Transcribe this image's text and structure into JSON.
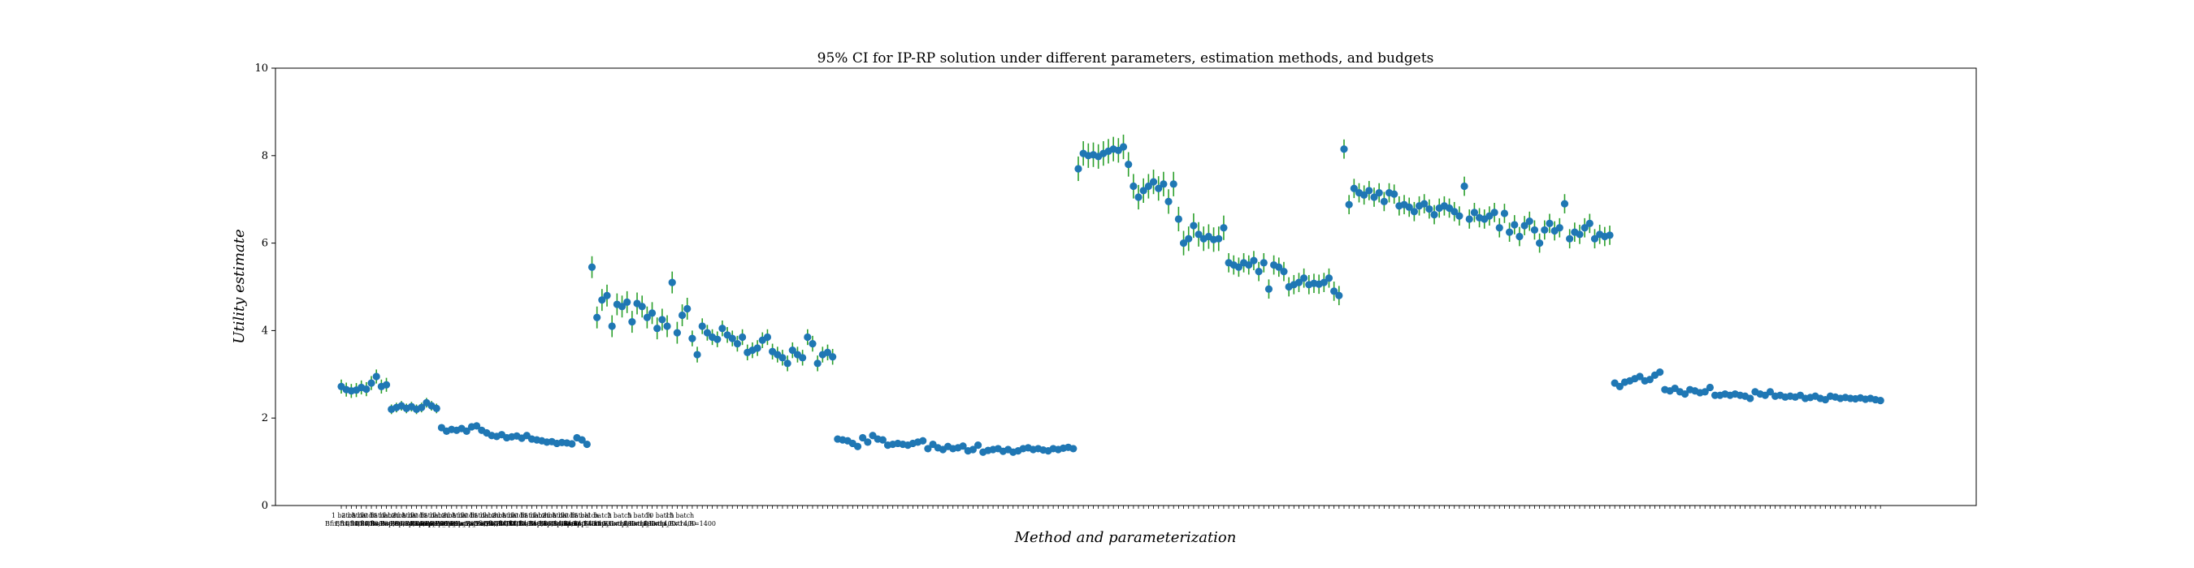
{
  "chart_data": {
    "type": "scatter",
    "title": "95% CI for IP-RP solution under different parameters, estimation methods, and budgets",
    "xlabel": "Method and parameterization",
    "ylabel": "Utility estimate",
    "ylim": [
      0,
      10
    ],
    "yticks": [
      0,
      2,
      4,
      6,
      8,
      10
    ],
    "grid": false,
    "colors": {
      "point": "#1f77b4",
      "errorbar": "#2ca02c"
    },
    "group_labels": [
      {
        "line1": "1 batch",
        "line2": "Bfix,B=700"
      },
      {
        "line1": "2 batch",
        "line2": "Bfix,B=700"
      },
      {
        "line1": "5 batch",
        "line2": "Bfix,B=700"
      },
      {
        "line1": "10 batch",
        "line2": "Bfix,B=700"
      },
      {
        "line1": "15 batch",
        "line2": "Bfix,B=700"
      },
      {
        "line1": "1 batch",
        "line2": "Bsamp,B=700"
      },
      {
        "line1": "2 batch",
        "line2": "Bsamp,B=700"
      },
      {
        "line1": "5 batch",
        "line2": "Bsamp,B=700"
      },
      {
        "line1": "10 batch",
        "line2": "Bsamp,B=700"
      },
      {
        "line1": "15 batch",
        "line2": "Bsamp,B=700"
      },
      {
        "line1": "1 batch",
        "line2": "Bsamp_Extra,B=700"
      },
      {
        "line1": "2 batch",
        "line2": "Bsamp_Extra,B=700"
      },
      {
        "line1": "5 batch",
        "line2": "Bsamp_Extra,B=700"
      },
      {
        "line1": "10 batch",
        "line2": "Bsamp_Extra,B=700"
      },
      {
        "line1": "15 batch",
        "line2": "Bsamp_Extra,B=700"
      },
      {
        "line1": "1 batch",
        "line2": "Bfix,B=1400"
      },
      {
        "line1": "2 batch",
        "line2": "Bfix,B=1400"
      },
      {
        "line1": "5 batch",
        "line2": "Bfix,B=1400"
      },
      {
        "line1": "10 batch",
        "line2": "Bfix,B=1400"
      },
      {
        "line1": "15 batch",
        "line2": "Bfix,B=1400"
      },
      {
        "line1": "1 batch",
        "line2": "Bsamp,B=1400"
      },
      {
        "line1": "2 batch",
        "line2": "Bsamp,B=1400"
      },
      {
        "line1": "5 batch",
        "line2": "Bsamp,B=1400"
      },
      {
        "line1": "10 batch",
        "line2": "Bsamp,B=1400"
      },
      {
        "line1": "15 batch",
        "line2": "Bsamp,B=1400"
      },
      {
        "line1": "1 batch",
        "line2": "Bsamp_Extra,B=1400"
      },
      {
        "line1": "2 batch",
        "line2": "Bsamp_Extra,B=1400"
      },
      {
        "line1": "5 batch",
        "line2": "Bsamp_Extra,B=1400"
      },
      {
        "line1": "10 batch",
        "line2": "Bsamp_Extra,B=1400"
      },
      {
        "line1": "15 batch",
        "line2": "Bsamp_Extra,B=1400"
      }
    ],
    "series": [
      {
        "y": [
          2.72,
          2.65,
          2.62,
          2.64,
          2.7,
          2.66,
          2.8,
          2.95,
          2.72,
          2.76
        ],
        "ci": 0.16
      },
      {
        "y": [
          2.2,
          2.24,
          2.28,
          2.22,
          2.26,
          2.2,
          2.24,
          2.35,
          2.28,
          2.22
        ],
        "ci": 0.11
      },
      {
        "y": [
          1.78,
          1.7,
          1.74,
          1.72,
          1.76,
          1.7,
          1.8,
          1.82,
          1.72,
          1.66
        ],
        "ci": 0.07
      },
      {
        "y": [
          1.6,
          1.58,
          1.62,
          1.55,
          1.57,
          1.59,
          1.54,
          1.6,
          1.52,
          1.5
        ],
        "ci": 0.04
      },
      {
        "y": [
          1.48,
          1.45,
          1.46,
          1.42,
          1.44,
          1.43,
          1.41,
          1.55,
          1.5,
          1.4
        ],
        "ci": 0.03
      },
      {
        "y": [
          5.45,
          4.3,
          4.7,
          4.8,
          4.1,
          4.6,
          4.55,
          4.65,
          4.2,
          4.62,
          4.55,
          4.3,
          4.4,
          4.05,
          4.25,
          4.1,
          5.1,
          3.95,
          4.35,
          4.5
        ],
        "ci": 0.25
      },
      {
        "y": [
          3.82,
          3.45,
          4.1,
          3.95,
          3.85,
          3.8,
          4.05,
          3.9,
          3.82,
          3.7,
          3.85,
          3.5,
          3.55,
          3.6,
          3.78,
          3.85,
          3.52,
          3.45,
          3.38,
          3.25,
          3.55,
          3.45,
          3.38,
          3.85,
          3.7,
          3.25,
          3.45,
          3.5,
          3.4
        ],
        "ci": 0.18
      },
      {
        "y": [
          1.52,
          1.5,
          1.48,
          1.42,
          1.35,
          1.55,
          1.45,
          1.6,
          1.52,
          1.5,
          1.38,
          1.4,
          1.42,
          1.4,
          1.38,
          1.42,
          1.45,
          1.48,
          1.3,
          1.4,
          1.32,
          1.28,
          1.35,
          1.3,
          1.32,
          1.36,
          1.25,
          1.28,
          1.38,
          1.22,
          1.26,
          1.28,
          1.3,
          1.24,
          1.28,
          1.22,
          1.25,
          1.3,
          1.32,
          1.28,
          1.3,
          1.27,
          1.25,
          1.3,
          1.28,
          1.31,
          1.33,
          1.3
        ],
        "ci": 0.04
      },
      {
        "y": [
          7.7,
          8.05,
          8.0,
          8.02,
          7.98,
          8.05,
          8.1,
          8.15,
          8.12,
          8.2,
          7.8,
          7.3,
          7.05,
          7.2,
          7.3,
          7.4,
          7.25,
          7.35,
          6.95,
          7.35,
          6.55,
          6.0,
          6.1,
          6.4,
          6.2,
          6.1,
          6.15,
          6.08,
          6.1,
          6.35
        ],
        "ci": 0.28
      },
      {
        "y": [
          5.55,
          5.5,
          5.45,
          5.55,
          5.5,
          5.6,
          5.35,
          5.55,
          4.95,
          5.5,
          5.45,
          5.35,
          5.0,
          5.05,
          5.1,
          5.2,
          5.05,
          5.08,
          5.06,
          5.1,
          5.2,
          4.9,
          4.8
        ],
        "ci": 0.22
      },
      {
        "y": [
          8.15,
          6.88,
          7.25,
          7.15,
          7.1,
          7.2,
          7.05,
          7.15,
          6.95,
          7.15,
          7.12,
          6.85,
          6.88,
          6.82,
          6.72,
          6.85,
          6.9,
          6.78,
          6.65,
          6.8,
          6.85,
          6.8,
          6.72,
          6.62,
          7.3,
          6.55,
          6.7,
          6.58,
          6.55,
          6.62,
          6.7,
          6.35,
          6.68,
          6.25,
          6.42,
          6.15,
          6.4,
          6.5,
          6.3,
          6.0,
          6.3,
          6.45,
          6.28,
          6.35,
          6.9,
          6.1,
          6.25,
          6.2,
          6.35,
          6.45,
          6.1,
          6.2,
          6.15,
          6.18
        ],
        "ci": 0.22
      },
      {
        "y": [
          2.8,
          2.72,
          2.82,
          2.85,
          2.9,
          2.95,
          2.85,
          2.88,
          2.98,
          3.05,
          2.65,
          2.62,
          2.68,
          2.6,
          2.55,
          2.65,
          2.62,
          2.58,
          2.6,
          2.7,
          2.52,
          2.52,
          2.55,
          2.52,
          2.55,
          2.52,
          2.5,
          2.45,
          2.6,
          2.55,
          2.52,
          2.6,
          2.5,
          2.52,
          2.48,
          2.5,
          2.48,
          2.52,
          2.45,
          2.47,
          2.5,
          2.45,
          2.42,
          2.5,
          2.48,
          2.45,
          2.47,
          2.45,
          2.44,
          2.46,
          2.43,
          2.45,
          2.42,
          2.4
        ],
        "ci": 0.03
      }
    ]
  }
}
